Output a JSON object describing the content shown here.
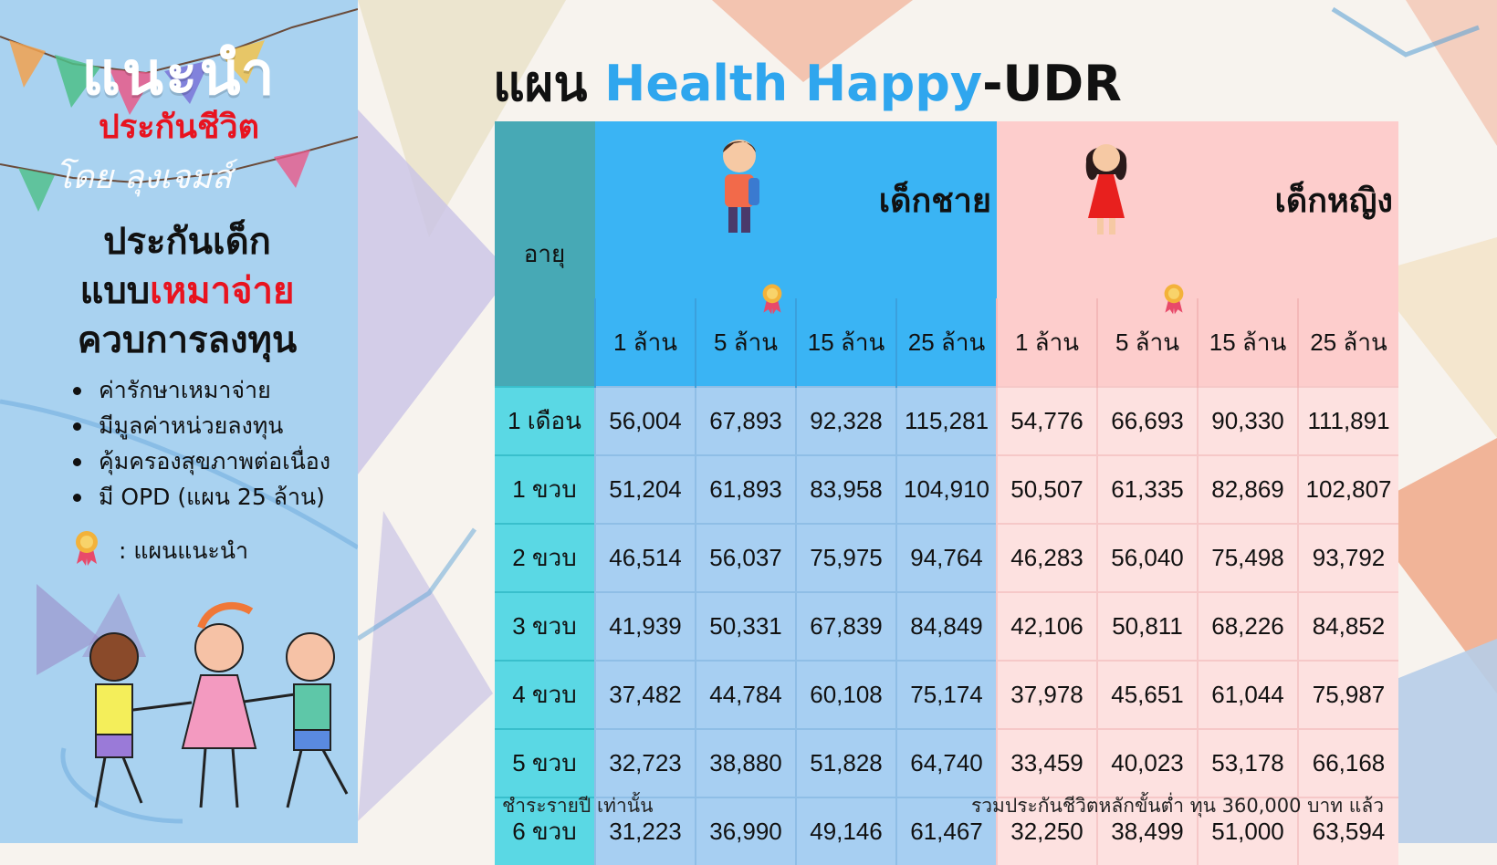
{
  "sidebar": {
    "brand_line1": "แนะนำ",
    "brand_line2": "ประกันชีวิต",
    "brand_line3": "โดย ลุงเจมส์",
    "promo_line1": "ประกันเด็ก",
    "promo_line2_prefix": "แบบ",
    "promo_line2_highlight": "เหมาจ่าย",
    "promo_line3": "ควบการลงทุน",
    "features": [
      "ค่ารักษาเหมาจ่าย",
      "มีมูลค่าหน่วยลงทุน",
      "คุ้มครองสุขภาพต่อเนื่อง",
      "มี OPD (แผน 25 ล้าน)"
    ],
    "legend_label": ": แผนแนะนำ"
  },
  "title": {
    "prefix": "แผน",
    "highlight": "Health Happy",
    "suffix": "-UDR"
  },
  "table": {
    "age_header": "อายุ",
    "groups": [
      {
        "label": "เด็กชาย",
        "color": "#3ab4f4"
      },
      {
        "label": "เด็กหญิง",
        "color": "#fdcdcc"
      }
    ],
    "plans": [
      "1 ล้าน",
      "5 ล้าน",
      "15 ล้าน",
      "25 ล้าน"
    ],
    "recommended_plan_index": 1,
    "rows": [
      {
        "age": "1 เดือน",
        "boy": [
          "56,004",
          "67,893",
          "92,328",
          "115,281"
        ],
        "girl": [
          "54,776",
          "66,693",
          "90,330",
          "111,891"
        ]
      },
      {
        "age": "1 ขวบ",
        "boy": [
          "51,204",
          "61,893",
          "83,958",
          "104,910"
        ],
        "girl": [
          "50,507",
          "61,335",
          "82,869",
          "102,807"
        ]
      },
      {
        "age": "2 ขวบ",
        "boy": [
          "46,514",
          "56,037",
          "75,975",
          "94,764"
        ],
        "girl": [
          "46,283",
          "56,040",
          "75,498",
          "93,792"
        ]
      },
      {
        "age": "3 ขวบ",
        "boy": [
          "41,939",
          "50,331",
          "67,839",
          "84,849"
        ],
        "girl": [
          "42,106",
          "50,811",
          "68,226",
          "84,852"
        ]
      },
      {
        "age": "4 ขวบ",
        "boy": [
          "37,482",
          "44,784",
          "60,108",
          "75,174"
        ],
        "girl": [
          "37,978",
          "45,651",
          "61,044",
          "75,987"
        ]
      },
      {
        "age": "5 ขวบ",
        "boy": [
          "32,723",
          "38,880",
          "51,828",
          "64,740"
        ],
        "girl": [
          "33,459",
          "40,023",
          "53,178",
          "66,168"
        ]
      },
      {
        "age": "6 ขวบ",
        "boy": [
          "31,223",
          "36,990",
          "49,146",
          "61,467"
        ],
        "girl": [
          "32,250",
          "38,499",
          "51,000",
          "63,594"
        ]
      }
    ]
  },
  "footer": {
    "note_left": "ชำระรายปี เท่านั้น",
    "note_right": "รวมประกันชีวิตหลักขั้นต่ำ ทุน 360,000 บาท แล้ว"
  },
  "colors": {
    "sidebar_bg": "#a9d2f0",
    "boy_header": "#3ab4f4",
    "boy_cell": "#a7cff2",
    "girl_header": "#fdcdcc",
    "girl_cell": "#fde1e0",
    "age_header": "#47a9b5",
    "age_cell": "#5ad8e4",
    "accent_red": "#e8131f",
    "title_accent": "#2fa6ee"
  }
}
